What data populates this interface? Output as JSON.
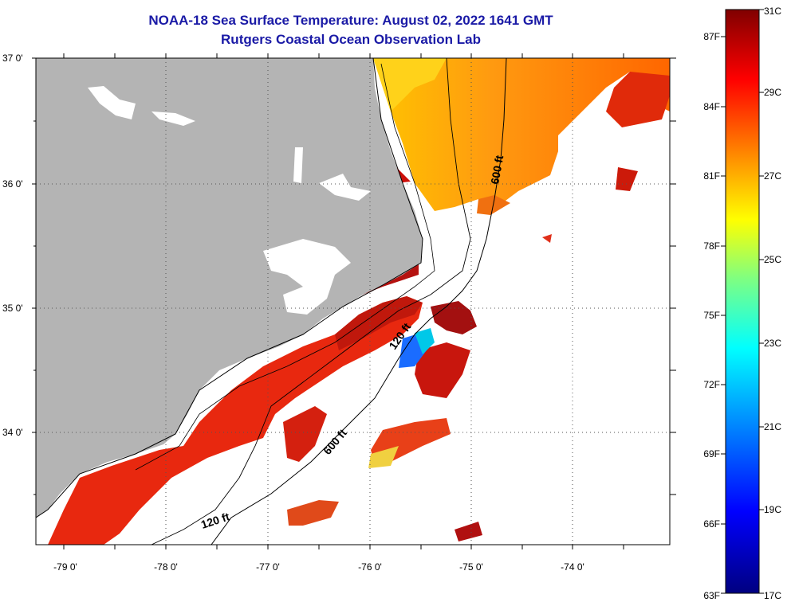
{
  "title": "NOAA-18 Sea Surface Temperature:  August 02, 2022 1641 GMT",
  "subtitle": "Rutgers Coastal Ocean Observation Lab",
  "lat_labels": [
    "37 0'",
    "36 0'",
    "35 0'",
    "34 0'"
  ],
  "lon_labels": [
    "-79 0'",
    "-78 0'",
    "-77 0'",
    "-76 0'",
    "-75 0'",
    "-74 0'"
  ],
  "isobaths": {
    "north_600": "600 ft",
    "south_120": "120 ft",
    "south_600": "600 ft",
    "west_120": "120 ft"
  },
  "colorbar": {
    "fahrenheit": [
      "87F",
      "84F",
      "81F",
      "78F",
      "75F",
      "72F",
      "69F",
      "66F",
      "63F"
    ],
    "celsius": [
      "31C",
      "29C",
      "27C",
      "25C",
      "23C",
      "21C",
      "19C",
      "17C"
    ],
    "colors": [
      "#000080",
      "#0000ff",
      "#0080ff",
      "#00ffff",
      "#80ff80",
      "#ffff00",
      "#ff8000",
      "#ff0000",
      "#800000"
    ]
  },
  "colors": {
    "land": "#b4b4b4",
    "no_data": "#ffffff",
    "title": "#1a1aa6"
  }
}
